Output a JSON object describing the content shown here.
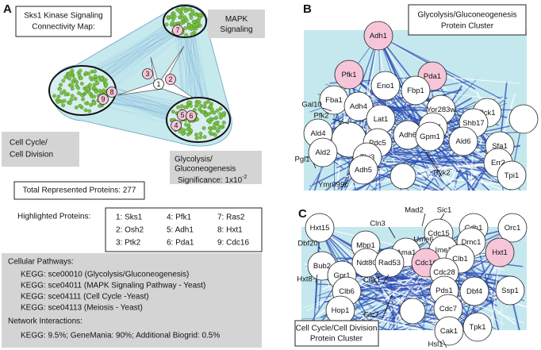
{
  "panel_labels": [
    "A",
    "B",
    "C"
  ],
  "panel_a": {
    "title": [
      "Sks1 Kinase Signaling",
      "Connectivity Map:"
    ],
    "mapk": "MAPK Signaling",
    "cell_cycle": [
      "Cell Cycle/",
      "Cell Division"
    ],
    "glycolysis": [
      "Glycolysis/",
      "Gluconeogenesis"
    ],
    "significance": {
      "text": "Significance: 1x10",
      "exponent": "-2"
    },
    "network_nodes": [
      {
        "label": "1"
      },
      {
        "label": "2",
        "highlighted": true
      },
      {
        "label": "3",
        "highlighted": true
      },
      {
        "label": "4",
        "highlighted": true
      },
      {
        "label": "5",
        "highlighted": true
      },
      {
        "label": "6",
        "highlighted": true
      },
      {
        "label": "7",
        "highlighted": true
      },
      {
        "label": "8",
        "highlighted": true
      },
      {
        "label": "9",
        "highlighted": true
      }
    ],
    "total": "Total Represented Proteins: 277",
    "highlighted_title": "Highlighted Proteins:",
    "highlighted": [
      "1: Sks1",
      "2: Osh2",
      "3: Ptk2",
      "4: Pfk1",
      "5: Adh1",
      "6: Pda1",
      "7: Ras2",
      "8: Hxt1",
      "9: Cdc16"
    ],
    "pathways_title": "Cellular Pathways:",
    "pathways": [
      "KEGG: sce00010 (Glycolysis/Gluconeogenesis)",
      "KEGG: sce04011 (MAPK Signaling Pathway - Yeast)",
      "KEGG: sce04111 (Cell Cycle -Yeast)",
      "KEGG: sce04113 (Meiosis - Yeast)"
    ],
    "network_title": "Network Interactions:",
    "network": "KEGG: 9.5%; GeneMania: 90%; Additional Biogrid: 0.5%"
  },
  "panel_b": {
    "title": [
      "Glycolysis/Gluconeogenesis",
      "Protein Cluster"
    ],
    "nodes": [
      {
        "label": "Adh1",
        "highlighted": true
      },
      {
        "label": "Pfk1",
        "highlighted": true
      },
      {
        "label": "Pda1",
        "highlighted": true
      },
      {
        "label": "Eno1"
      },
      {
        "label": "Fbp1"
      },
      {
        "label": "Fba1"
      },
      {
        "label": "Adh4"
      },
      {
        "label": "Lat1"
      },
      {
        "label": "Pck1"
      },
      {
        "label": "Gal10"
      },
      {
        "label": "Pfk2"
      },
      {
        "label": "Yor283w"
      },
      {
        "label": "Hxk1"
      },
      {
        "label": "Shb17"
      },
      {
        "label": "Ald4"
      },
      {
        "label": "Ald2"
      },
      {
        "label": "Pdc5"
      },
      {
        "label": "Adh6"
      },
      {
        "label": "Gpm1"
      },
      {
        "label": "Ald6"
      },
      {
        "label": "Sfa1"
      },
      {
        "label": "Err2"
      },
      {
        "label": "Pgi1"
      },
      {
        "label": "Thi3"
      },
      {
        "label": "Adh5"
      },
      {
        "label": "Pyk2"
      },
      {
        "label": "Tpi1"
      },
      {
        "label": "Ymr099c"
      }
    ]
  },
  "panel_c": {
    "title": [
      "Cell Cycle/Cell Division",
      "Protein Cluster"
    ],
    "nodes": [
      {
        "label": "Mad2"
      },
      {
        "label": "Sic1"
      },
      {
        "label": "Cln3"
      },
      {
        "label": "Hxt15"
      },
      {
        "label": "Cdc15"
      },
      {
        "label": "Cdh1"
      },
      {
        "label": "Orc1"
      },
      {
        "label": "Dbf20"
      },
      {
        "label": "Mbp1"
      },
      {
        "label": "Ume6"
      },
      {
        "label": "Dmc1"
      },
      {
        "label": "Hxt1",
        "highlighted": true
      },
      {
        "label": "Ama1"
      },
      {
        "label": "Ime1"
      },
      {
        "label": "Bub2"
      },
      {
        "label": "Ndt80"
      },
      {
        "label": "Rad53"
      },
      {
        "label": "Cdc16",
        "highlighted": true
      },
      {
        "label": "Clb1"
      },
      {
        "label": "Gpr1"
      },
      {
        "label": "Cdc28"
      },
      {
        "label": "Hxt8"
      },
      {
        "label": "Chk1"
      },
      {
        "label": "Clb6"
      },
      {
        "label": "Pds1"
      },
      {
        "label": "Dbf4"
      },
      {
        "label": "Ssp1"
      },
      {
        "label": "Glc7"
      },
      {
        "label": "Hop1"
      },
      {
        "label": "Cdc7"
      },
      {
        "label": "Tpk1"
      },
      {
        "label": "Cak1"
      },
      {
        "label": "Hsl1"
      }
    ]
  }
}
